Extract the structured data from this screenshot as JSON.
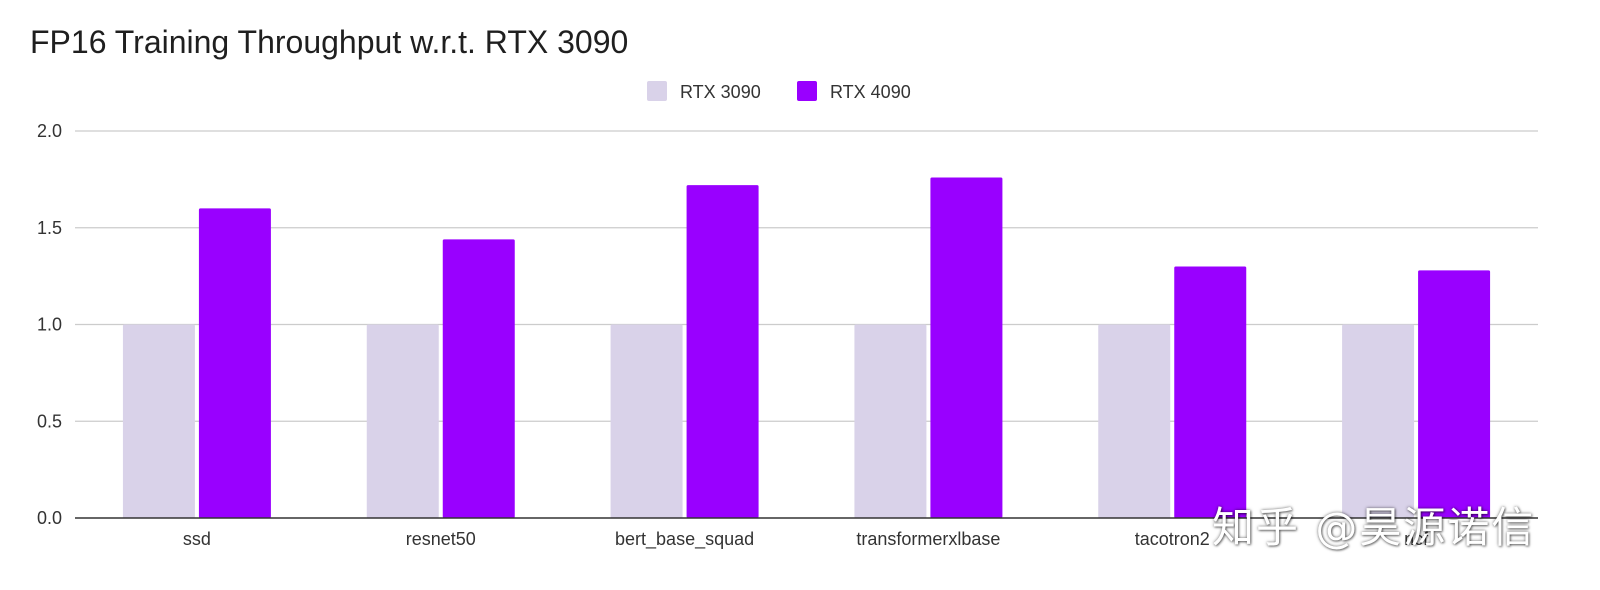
{
  "chart_data": {
    "type": "bar",
    "title": "FP16 Training Throughput w.r.t. RTX 3090",
    "xlabel": "",
    "ylabel": "",
    "categories": [
      "ssd",
      "resnet50",
      "bert_base_squad",
      "transformerxlbase",
      "tacotron2",
      "ncf"
    ],
    "series": [
      {
        "name": "RTX 3090",
        "color": "#d9d2e9",
        "values": [
          1.0,
          1.0,
          1.0,
          1.0,
          1.0,
          1.0
        ]
      },
      {
        "name": "RTX 4090",
        "color": "#9900ff",
        "values": [
          1.6,
          1.44,
          1.72,
          1.76,
          1.3,
          1.28
        ]
      }
    ],
    "ylim": [
      0,
      2.0
    ],
    "yticks": [
      "0.0",
      "0.5",
      "1.0",
      "1.5",
      "2.0"
    ],
    "grid": true,
    "legend_position": "top-center"
  },
  "watermark": "知乎 @昊源诺信"
}
